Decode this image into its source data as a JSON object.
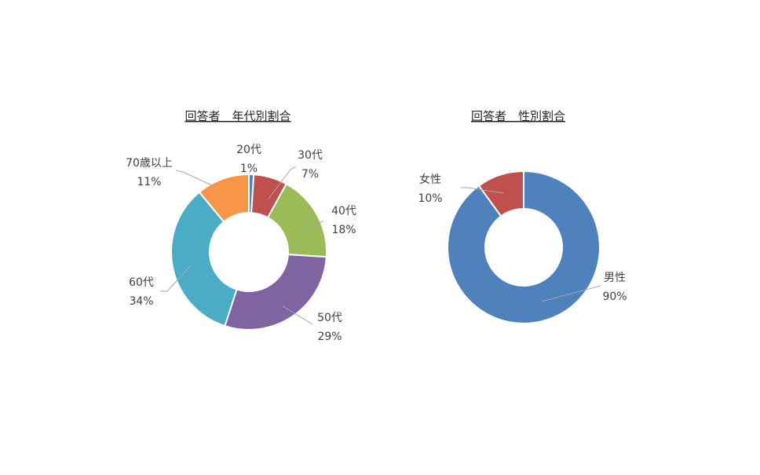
{
  "chart_data": [
    {
      "type": "pie",
      "donut": true,
      "title": "回答者　年代別割合",
      "categories": [
        "20代",
        "30代",
        "40代",
        "50代",
        "60代",
        "70歳以上"
      ],
      "values": [
        1,
        7,
        18,
        29,
        34,
        11
      ],
      "value_labels": [
        "1%",
        "7%",
        "18%",
        "29%",
        "34%",
        "11%"
      ],
      "colors": [
        "#4f81bd",
        "#c0504d",
        "#9bbb59",
        "#8064a2",
        "#4bacc6",
        "#f79646"
      ],
      "legend": "none",
      "data_labels": "category and percentage, outside with leader lines"
    },
    {
      "type": "pie",
      "donut": true,
      "title": "回答者　性別割合",
      "categories": [
        "男性",
        "女性"
      ],
      "values": [
        90,
        10
      ],
      "value_labels": [
        "90%",
        "10%"
      ],
      "colors": [
        "#4f81bd",
        "#c0504d"
      ],
      "legend": "none",
      "data_labels": "category and percentage, outside with leader lines"
    }
  ]
}
